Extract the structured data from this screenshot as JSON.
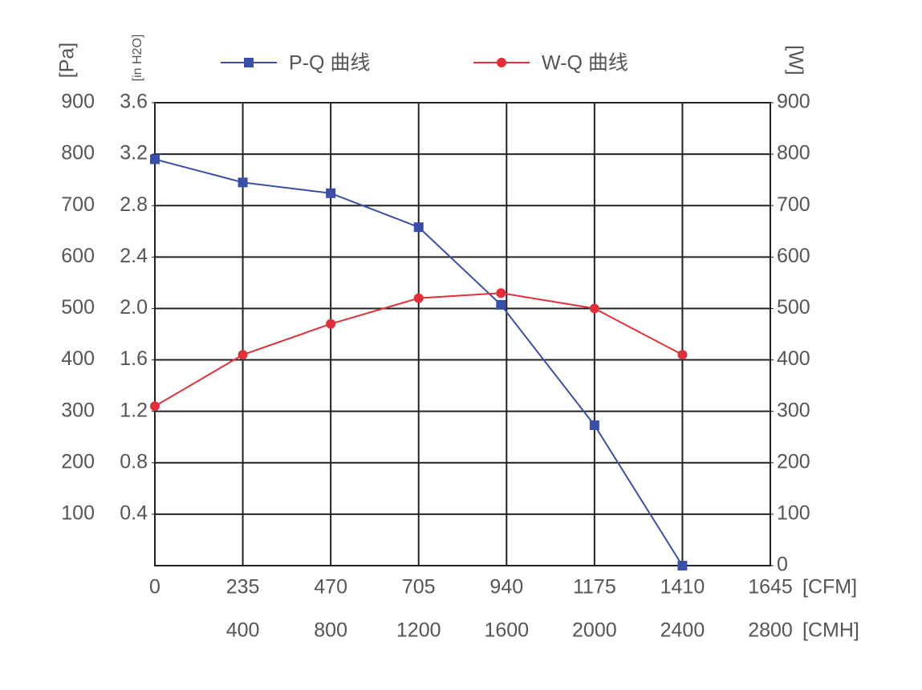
{
  "chart_data": {
    "type": "line",
    "x": [
      0,
      235,
      470,
      705,
      925,
      1175,
      1410
    ],
    "xlim": [
      0,
      1645
    ],
    "xticks": [
      0,
      235,
      470,
      705,
      940,
      1175,
      1410,
      1645
    ],
    "x_unit": "[CFM]",
    "x2lim": [
      0,
      2800
    ],
    "x2ticks": [
      400,
      800,
      1200,
      1600,
      2000,
      2400,
      2800
    ],
    "x2_unit": "[CMH]",
    "ylim": [
      0,
      900
    ],
    "yticks": [
      100,
      200,
      300,
      400,
      500,
      600,
      700,
      800,
      900
    ],
    "ylabel": "[Pa]",
    "yalt_lim": [
      0,
      3.6
    ],
    "yalt_ticks": [
      0.4,
      0.8,
      1.2,
      1.6,
      {
        "value": 2,
        "label": "2.0"
      },
      2.4,
      2.8,
      3.2,
      3.6
    ],
    "yalt_label": "[in H2O]",
    "y2lim": [
      0,
      900
    ],
    "y2ticks": [
      0,
      100,
      200,
      300,
      400,
      500,
      600,
      700,
      800,
      900
    ],
    "y2label": "[W]",
    "grid": true,
    "series": [
      {
        "name": "P-Q 曲线",
        "color": "#3a4fa8",
        "marker": "square",
        "values": [
          790,
          745,
          724,
          658,
          507,
          273,
          0
        ]
      },
      {
        "name": "W-Q 曲线",
        "color": "#e0303a",
        "marker": "circle",
        "axis": "y2",
        "values": [
          310,
          410,
          470,
          520,
          530,
          500,
          410
        ]
      }
    ]
  }
}
